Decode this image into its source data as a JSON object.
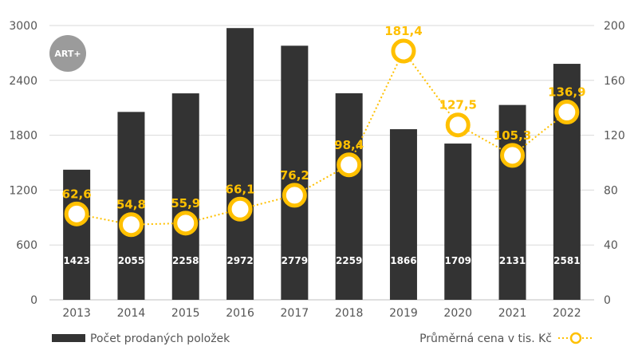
{
  "logo": {
    "text": "ART+"
  },
  "chart_data": {
    "type": "bar",
    "categories": [
      "2013",
      "2014",
      "2015",
      "2016",
      "2017",
      "2018",
      "2019",
      "2020",
      "2021",
      "2022"
    ],
    "series": [
      {
        "name": "Počet prodaných položek",
        "type": "bar",
        "axis": "left",
        "color": "#333333",
        "values": [
          1423,
          2055,
          2258,
          2972,
          2779,
          2259,
          1866,
          1709,
          2131,
          2581
        ],
        "labels": [
          "1423",
          "2055",
          "2258",
          "2972",
          "2779",
          "2259",
          "1866",
          "1709",
          "2131",
          "2581"
        ]
      },
      {
        "name": "Průměrná cena v tis. Kč",
        "type": "line",
        "axis": "right",
        "color": "#FFC000",
        "values": [
          62.6,
          54.8,
          55.9,
          66.1,
          76.2,
          98.4,
          181.4,
          127.5,
          105.3,
          136.9
        ],
        "labels": [
          "62,6",
          "54,8",
          "55,9",
          "66,1",
          "76,2",
          "98,4",
          "181,4",
          "127,5",
          "105,3",
          "136,9"
        ]
      }
    ],
    "y_left": {
      "range": [
        0,
        3000
      ],
      "ticks": [
        "0",
        "600",
        "1200",
        "1800",
        "2400",
        "3000"
      ]
    },
    "y_right": {
      "range": [
        0,
        200
      ],
      "ticks": [
        "0",
        "40",
        "80",
        "120",
        "160",
        "200"
      ]
    },
    "grid": true,
    "legend": "bottom"
  }
}
